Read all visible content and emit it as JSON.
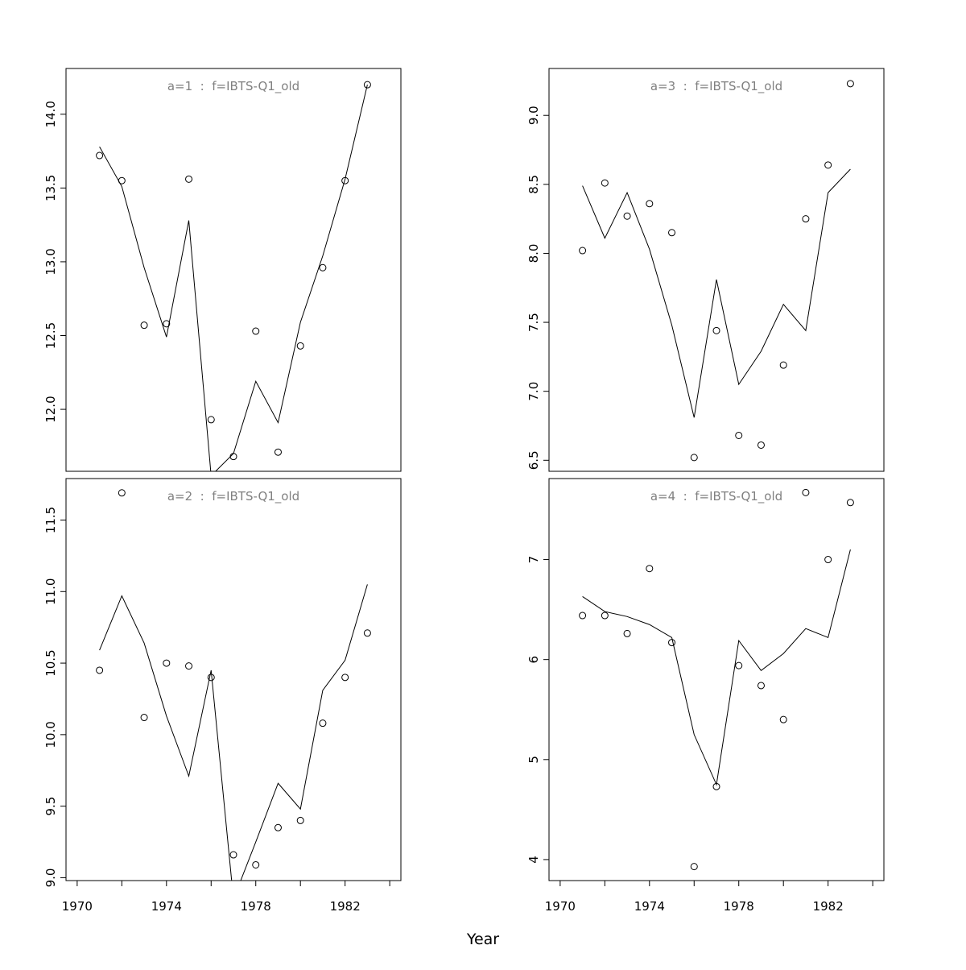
{
  "chart_data": {
    "type": "scatter+line",
    "xlabel": "Year",
    "x": [
      1971,
      1972,
      1973,
      1974,
      1975,
      1976,
      1977,
      1978,
      1979,
      1980,
      1981,
      1982,
      1983
    ],
    "x_ticks": [
      1970,
      1972,
      1974,
      1976,
      1978,
      1980,
      1982,
      1984
    ],
    "x_tick_labels": [
      "1970",
      "1974",
      "1978",
      "1982"
    ],
    "xlim": [
      1969.5,
      1984.5
    ],
    "panels": [
      {
        "title": "a=1  :  f=IBTS-Q1_old",
        "ylim": [
          11.58,
          14.31
        ],
        "y_ticks": [
          "12.0",
          "12.5",
          "13.0",
          "13.5",
          "14.0"
        ],
        "points": [
          13.72,
          13.55,
          12.57,
          12.58,
          13.56,
          11.93,
          11.68,
          12.53,
          11.71,
          12.43,
          12.96,
          13.55,
          14.2
        ],
        "line": [
          13.78,
          13.51,
          12.96,
          12.49,
          13.28,
          11.55,
          11.7,
          12.19,
          11.91,
          12.59,
          13.04,
          13.56,
          14.2
        ]
      },
      {
        "title": "a=3  :  f=IBTS-Q1_old",
        "ylim": [
          6.42,
          9.34
        ],
        "y_ticks": [
          "6.5",
          "7.0",
          "7.5",
          "8.0",
          "8.5",
          "9.0"
        ],
        "points": [
          8.02,
          8.51,
          8.27,
          8.36,
          8.15,
          6.52,
          7.44,
          6.68,
          6.61,
          7.19,
          8.25,
          8.64,
          9.23
        ],
        "line": [
          8.49,
          8.11,
          8.44,
          8.03,
          7.48,
          6.81,
          7.81,
          7.05,
          7.29,
          7.63,
          7.44,
          8.44,
          8.61
        ]
      },
      {
        "title": "a=2  :  f=IBTS-Q1_old",
        "ylim": [
          8.98,
          11.79
        ],
        "y_ticks": [
          "9.0",
          "9.5",
          "10.0",
          "10.5",
          "11.0",
          "11.5"
        ],
        "points": [
          10.45,
          11.69,
          10.12,
          10.5,
          10.48,
          10.4,
          9.16,
          9.09,
          9.35,
          9.4,
          10.08,
          10.4,
          10.71
        ],
        "line": [
          10.59,
          10.97,
          10.64,
          10.13,
          9.71,
          10.45,
          8.85,
          9.25,
          9.66,
          9.48,
          10.31,
          10.52,
          11.05
        ]
      },
      {
        "title": "a=4  :  f=IBTS-Q1_old",
        "ylim": [
          3.79,
          7.81
        ],
        "y_ticks": [
          "4",
          "5",
          "6",
          "7"
        ],
        "points": [
          6.44,
          6.44,
          6.26,
          6.91,
          6.17,
          3.93,
          4.73,
          5.94,
          5.74,
          5.4,
          7.67,
          7.0,
          7.57
        ],
        "line": [
          6.63,
          6.48,
          6.43,
          6.35,
          6.22,
          5.25,
          4.75,
          6.19,
          5.89,
          6.06,
          6.31,
          6.22,
          7.1
        ]
      }
    ]
  }
}
